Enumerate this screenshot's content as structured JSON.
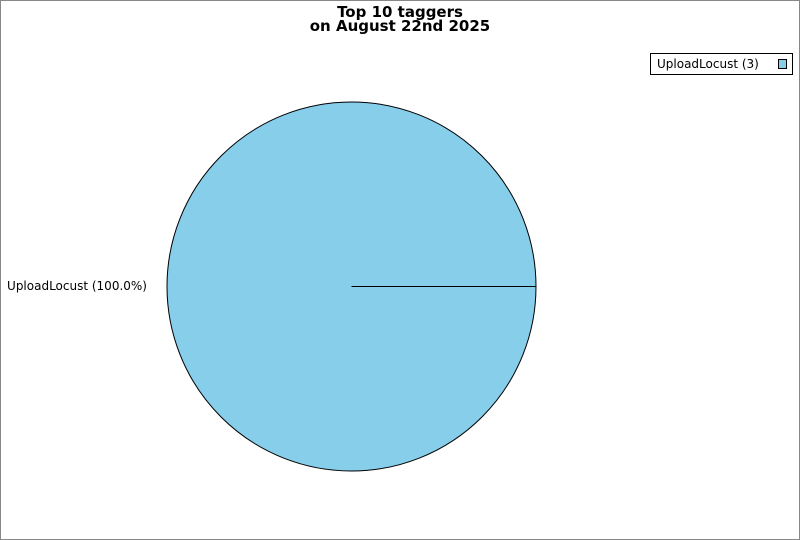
{
  "chart_data": {
    "type": "pie",
    "title": "Top 10 taggers",
    "subtitle": "on August 22nd 2025",
    "slices": [
      {
        "label": "UploadLocust",
        "value": 3,
        "percent_label": "UploadLocust (100.0%)",
        "legend_label": "UploadLocust (3)",
        "color": "#87ceeb"
      }
    ],
    "legend_placement": "top-right"
  }
}
